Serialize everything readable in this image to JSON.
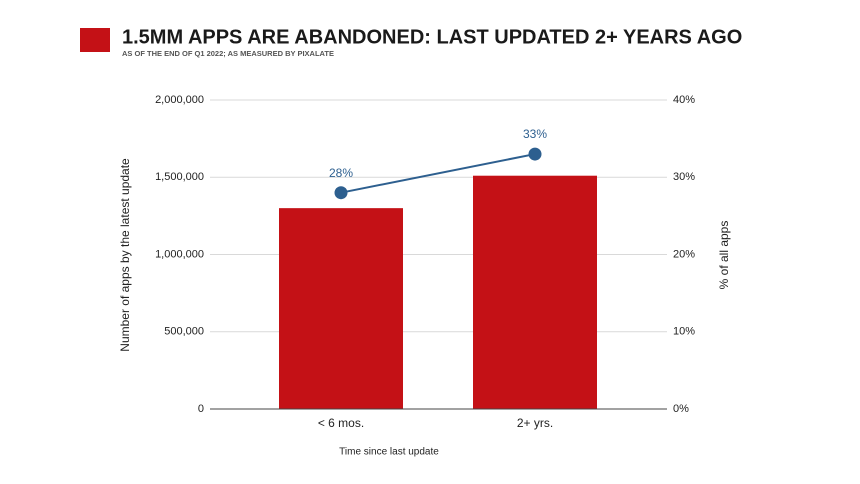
{
  "chart_data": {
    "type": "bar",
    "title": "1.5MM APPS ARE ABANDONED: LAST UPDATED 2+ YEARS AGO",
    "subtitle": "AS OF THE END OF Q1 2022; AS MEASURED BY PIXALATE",
    "x_label": "Time since last update",
    "y_label": "Number of apps by the latest update",
    "y2_label": "% of all apps",
    "categories": [
      "< 6 mos.",
      "2+ yrs."
    ],
    "series": [
      {
        "type": "bar",
        "color": "#c41116",
        "values": [
          1300000,
          1510000
        ]
      },
      {
        "type": "line",
        "axis": "y2",
        "color": "#2d5f8f",
        "values": [
          28,
          33
        ],
        "value_labels": [
          "28%",
          "33%"
        ]
      }
    ],
    "ylim": [
      0,
      2000000
    ],
    "yticks": [
      0,
      {
        "value": 500000,
        "label": "500,000"
      },
      {
        "value": 1000000,
        "label": "1,000,000"
      },
      {
        "value": 1500000,
        "label": "1,500,000"
      },
      {
        "value": 2000000,
        "label": "2,000,000"
      }
    ],
    "y2lim": [
      0,
      40
    ],
    "y2ticks": [
      {
        "value": 0,
        "label": "0%"
      },
      {
        "value": 10,
        "label": "10%"
      },
      {
        "value": 20,
        "label": "20%"
      },
      {
        "value": 30,
        "label": "30%"
      },
      {
        "value": 40,
        "label": "40%"
      }
    ],
    "grid": true
  }
}
